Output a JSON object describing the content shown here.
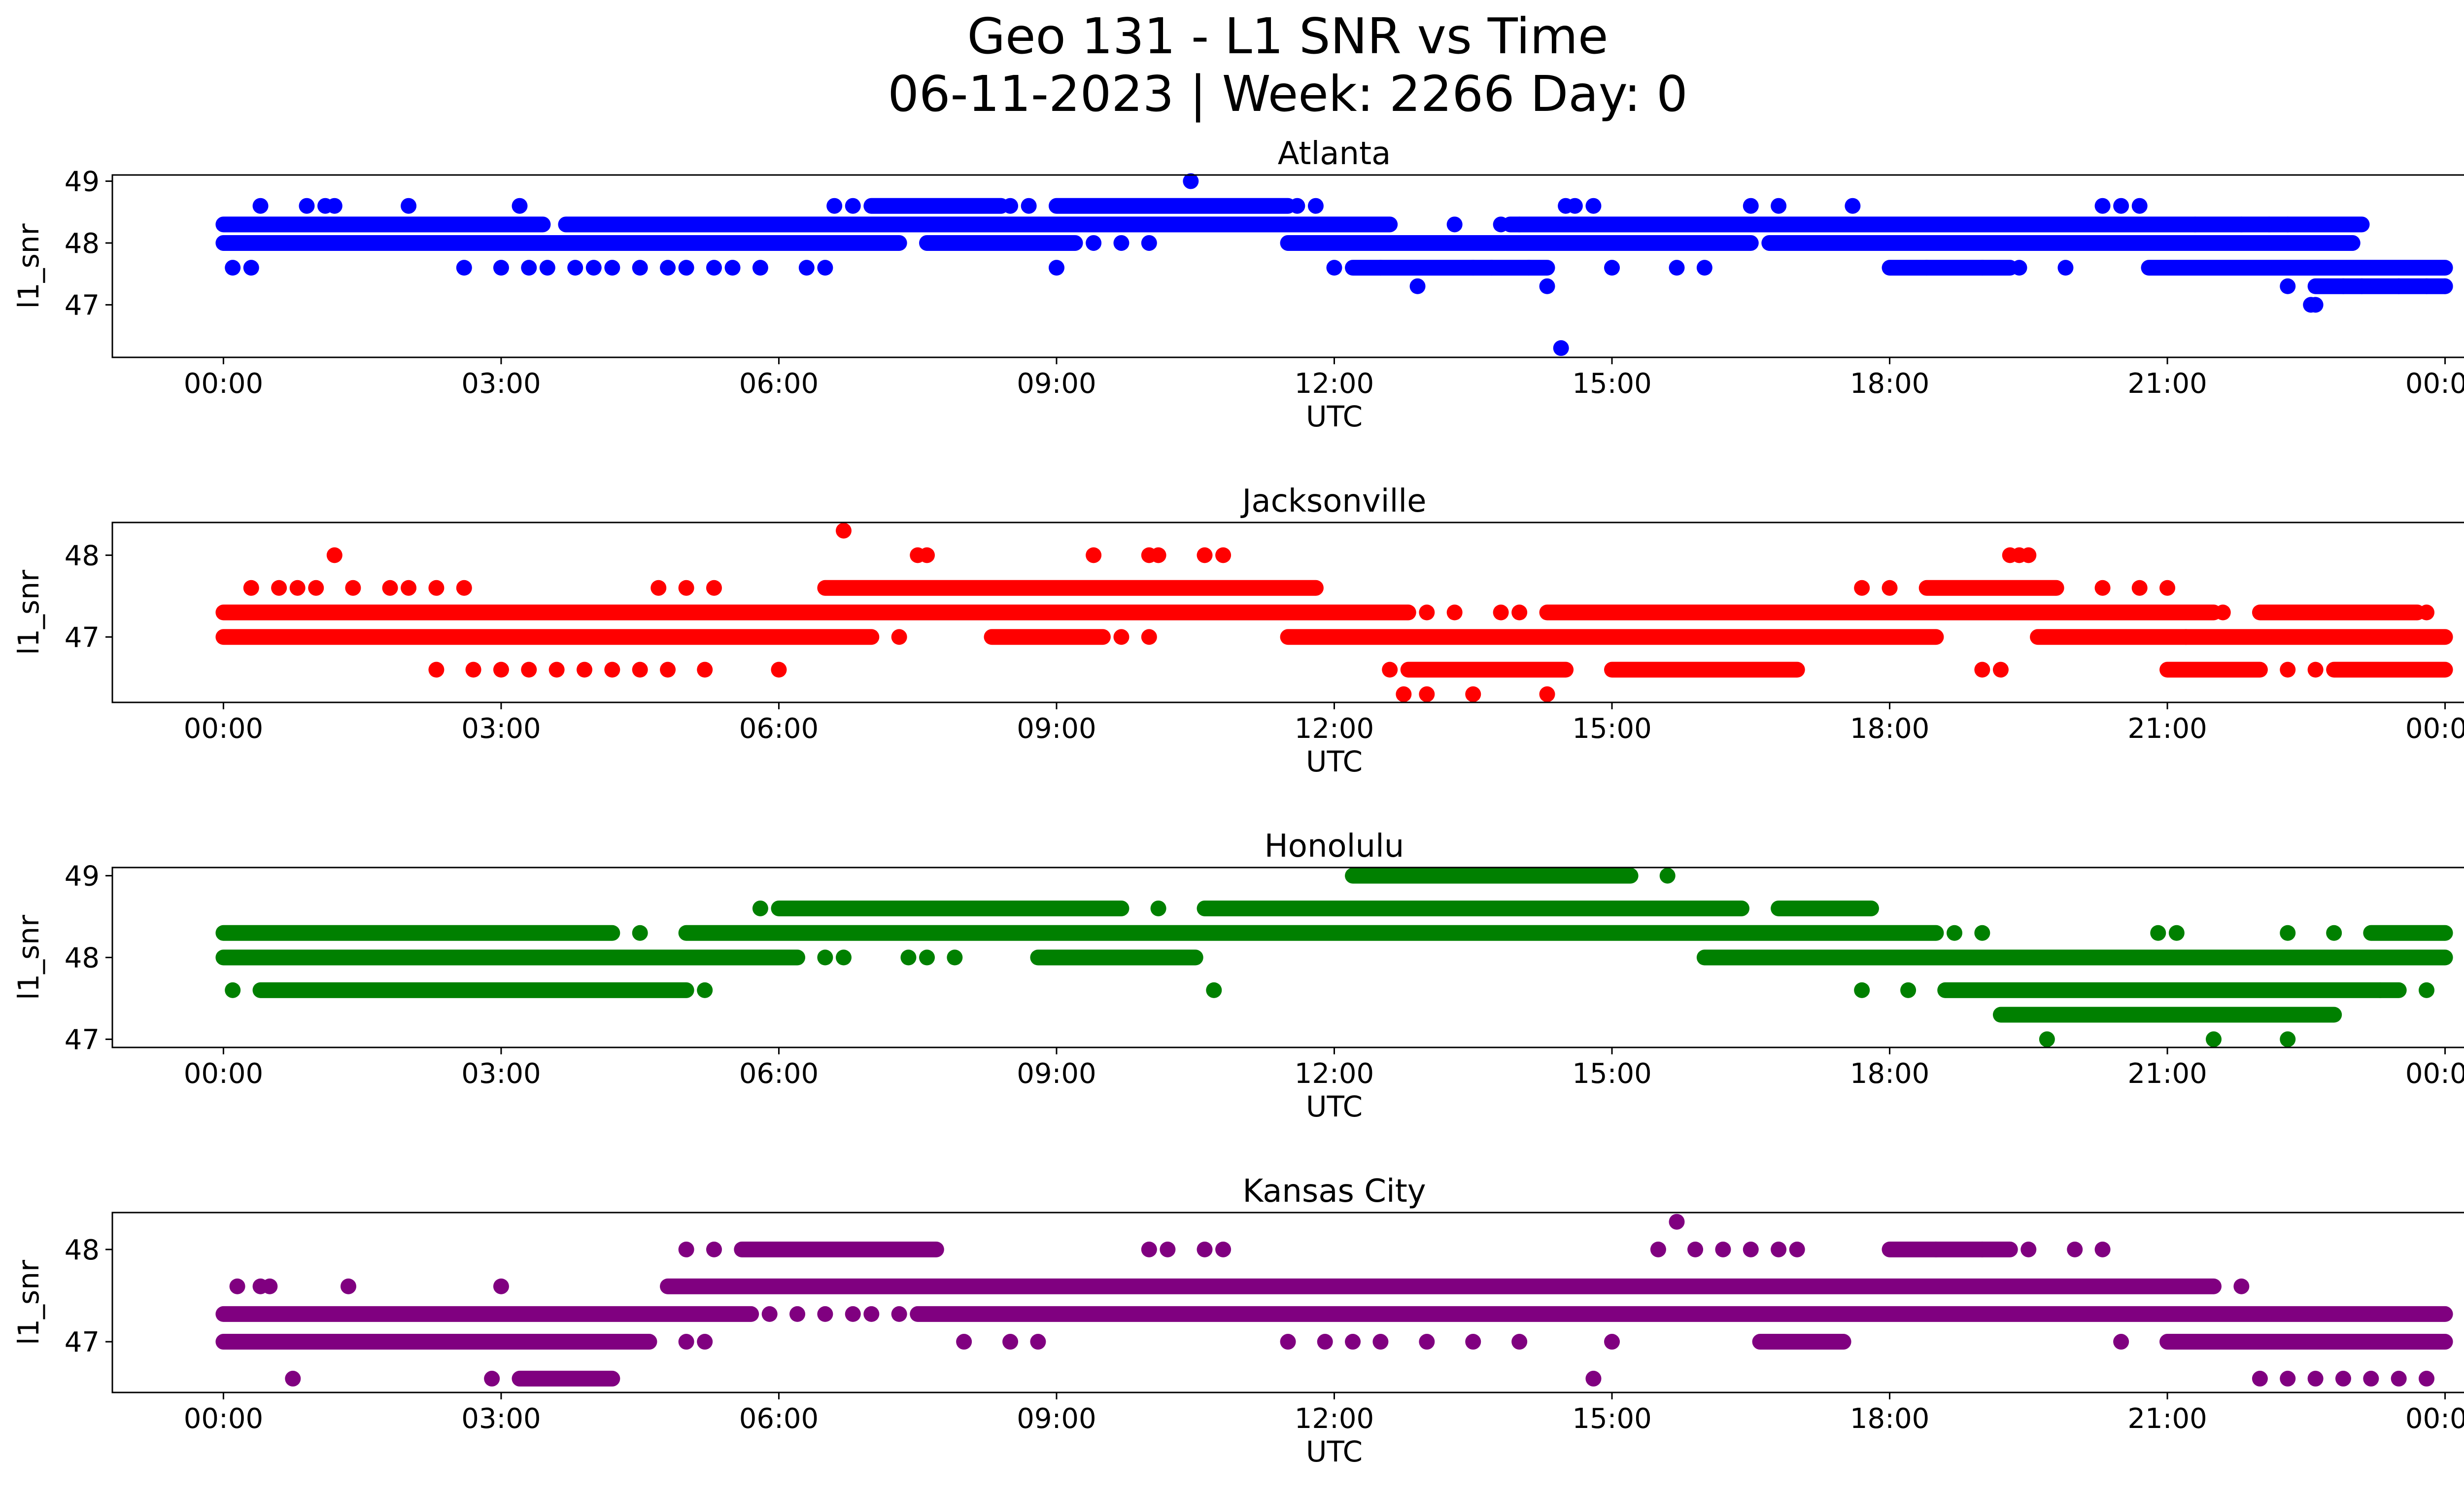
{
  "chart_data": {
    "type": "scatter",
    "title_line1": "Geo 131 - L1 SNR vs Time",
    "title_line2": "06-11-2023 | Week: 2266 Day: 0",
    "x_axis_unit": "hours UTC",
    "xlim": [
      -1.2,
      25.2
    ],
    "x_ticks": [
      0,
      3,
      6,
      9,
      12,
      15,
      18,
      21,
      24
    ],
    "x_tick_labels": [
      "00:00",
      "03:00",
      "06:00",
      "09:00",
      "12:00",
      "15:00",
      "18:00",
      "21:00",
      "00:00"
    ],
    "panels": [
      {
        "title": "Atlanta",
        "color": "#0000ff",
        "xlabel": "UTC",
        "ylabel": "l1_snr",
        "ylim": [
          46.15,
          49.1
        ],
        "y_ticks": [
          47,
          48,
          49
        ],
        "y_tick_labels": [
          "47",
          "48",
          "49"
        ],
        "bands": [
          {
            "y": 48.3,
            "from": 0,
            "to": 3.45
          },
          {
            "y": 48.3,
            "from": 3.7,
            "to": 12.6
          },
          {
            "y": 48.3,
            "from": 13.9,
            "to": 23.1
          },
          {
            "y": 48.0,
            "from": 0,
            "to": 7.3
          },
          {
            "y": 48.0,
            "from": 7.6,
            "to": 9.2
          },
          {
            "y": 48.0,
            "from": 11.5,
            "to": 16.5
          },
          {
            "y": 48.0,
            "from": 16.7,
            "to": 23.0
          },
          {
            "y": 47.6,
            "from": 12.2,
            "to": 14.3
          },
          {
            "y": 47.6,
            "from": 18.0,
            "to": 19.3
          },
          {
            "y": 47.6,
            "from": 20.8,
            "to": 24.0
          },
          {
            "y": 47.3,
            "from": 22.6,
            "to": 24.0
          },
          {
            "y": 48.6,
            "from": 7.0,
            "to": 8.4
          },
          {
            "y": 48.6,
            "from": 9.0,
            "to": 11.5
          }
        ],
        "points": [
          [
            0.1,
            47.6
          ],
          [
            0.3,
            47.6
          ],
          [
            0.4,
            48.6
          ],
          [
            0.9,
            48.6
          ],
          [
            1.1,
            48.6
          ],
          [
            1.2,
            48.6
          ],
          [
            2.0,
            48.6
          ],
          [
            2.6,
            47.6
          ],
          [
            3.0,
            47.6
          ],
          [
            3.2,
            48.6
          ],
          [
            3.3,
            47.6
          ],
          [
            3.5,
            47.6
          ],
          [
            3.8,
            47.6
          ],
          [
            4.0,
            47.6
          ],
          [
            4.2,
            47.6
          ],
          [
            4.5,
            47.6
          ],
          [
            4.8,
            47.6
          ],
          [
            5.0,
            47.6
          ],
          [
            5.3,
            47.6
          ],
          [
            5.5,
            47.6
          ],
          [
            5.8,
            47.6
          ],
          [
            6.3,
            47.6
          ],
          [
            6.5,
            47.6
          ],
          [
            6.6,
            48.6
          ],
          [
            6.8,
            48.6
          ],
          [
            8.5,
            48.6
          ],
          [
            8.7,
            48.6
          ],
          [
            9.0,
            47.6
          ],
          [
            9.4,
            48.0
          ],
          [
            9.7,
            48.0
          ],
          [
            10.0,
            48.0
          ],
          [
            10.45,
            49.0
          ],
          [
            11.6,
            48.6
          ],
          [
            11.8,
            48.6
          ],
          [
            12.0,
            47.6
          ],
          [
            12.5,
            47.6
          ],
          [
            12.9,
            47.3
          ],
          [
            13.3,
            48.3
          ],
          [
            13.5,
            47.6
          ],
          [
            13.7,
            47.6
          ],
          [
            13.8,
            48.3
          ],
          [
            14.0,
            48.3
          ],
          [
            14.1,
            47.6
          ],
          [
            14.3,
            47.3
          ],
          [
            14.45,
            46.3
          ],
          [
            14.5,
            48.6
          ],
          [
            14.6,
            48.6
          ],
          [
            14.8,
            48.6
          ],
          [
            15.0,
            47.6
          ],
          [
            15.7,
            47.6
          ],
          [
            16.0,
            47.6
          ],
          [
            16.5,
            48.6
          ],
          [
            16.8,
            48.6
          ],
          [
            17.6,
            48.6
          ],
          [
            18.4,
            47.6
          ],
          [
            19.0,
            47.6
          ],
          [
            19.4,
            47.6
          ],
          [
            19.9,
            47.6
          ],
          [
            20.3,
            48.6
          ],
          [
            20.5,
            48.6
          ],
          [
            20.7,
            48.6
          ],
          [
            21.3,
            48.3
          ],
          [
            21.8,
            48.3
          ],
          [
            22.1,
            48.3
          ],
          [
            22.3,
            48.3
          ],
          [
            22.6,
            48.0
          ],
          [
            22.8,
            48.0
          ],
          [
            22.55,
            47.0
          ],
          [
            22.6,
            47.0
          ],
          [
            22.3,
            47.3
          ],
          [
            22.9,
            47.3
          ],
          [
            23.1,
            47.3
          ],
          [
            23.5,
            47.3
          ],
          [
            23.8,
            47.3
          ],
          [
            24.0,
            47.3
          ]
        ]
      },
      {
        "title": "Jacksonville",
        "color": "#ff0000",
        "xlabel": "UTC",
        "ylabel": "l1_snr",
        "ylim": [
          46.2,
          48.4
        ],
        "y_ticks": [
          47,
          48
        ],
        "y_tick_labels": [
          "47",
          "48"
        ],
        "bands": [
          {
            "y": 47.3,
            "from": 0,
            "to": 12.8
          },
          {
            "y": 47.3,
            "from": 14.3,
            "to": 21.5
          },
          {
            "y": 47.3,
            "from": 22.0,
            "to": 23.7
          },
          {
            "y": 47.0,
            "from": 0,
            "to": 7.0
          },
          {
            "y": 47.0,
            "from": 8.3,
            "to": 9.5
          },
          {
            "y": 47.0,
            "from": 11.5,
            "to": 18.5
          },
          {
            "y": 47.0,
            "from": 19.6,
            "to": 24.0
          },
          {
            "y": 47.6,
            "from": 6.5,
            "to": 11.8
          },
          {
            "y": 47.6,
            "from": 18.4,
            "to": 19.8
          },
          {
            "y": 46.6,
            "from": 12.8,
            "to": 14.5
          },
          {
            "y": 46.6,
            "from": 15.0,
            "to": 17.0
          },
          {
            "y": 46.6,
            "from": 21.0,
            "to": 22.0
          },
          {
            "y": 46.6,
            "from": 22.8,
            "to": 24.0
          }
        ],
        "points": [
          [
            0.3,
            47.6
          ],
          [
            0.6,
            47.6
          ],
          [
            0.8,
            47.6
          ],
          [
            1.0,
            47.6
          ],
          [
            1.2,
            48.0
          ],
          [
            1.4,
            47.6
          ],
          [
            1.8,
            47.6
          ],
          [
            2.0,
            47.6
          ],
          [
            2.3,
            47.6
          ],
          [
            2.6,
            47.6
          ],
          [
            2.3,
            46.6
          ],
          [
            2.7,
            46.6
          ],
          [
            3.0,
            46.6
          ],
          [
            3.3,
            46.6
          ],
          [
            3.6,
            46.6
          ],
          [
            3.9,
            46.6
          ],
          [
            4.2,
            46.6
          ],
          [
            4.5,
            46.6
          ],
          [
            4.7,
            47.6
          ],
          [
            4.8,
            46.6
          ],
          [
            5.0,
            47.6
          ],
          [
            5.2,
            46.6
          ],
          [
            5.3,
            47.6
          ],
          [
            6.0,
            46.6
          ],
          [
            6.7,
            48.3
          ],
          [
            7.3,
            47.0
          ],
          [
            7.5,
            48.0
          ],
          [
            7.6,
            48.0
          ],
          [
            9.4,
            48.0
          ],
          [
            10.0,
            48.0
          ],
          [
            10.1,
            48.0
          ],
          [
            10.6,
            48.0
          ],
          [
            10.8,
            48.0
          ],
          [
            9.7,
            47.0
          ],
          [
            10.0,
            47.0
          ],
          [
            12.6,
            46.6
          ],
          [
            12.75,
            46.3
          ],
          [
            13.0,
            46.3
          ],
          [
            13.0,
            47.3
          ],
          [
            13.3,
            47.3
          ],
          [
            13.5,
            46.3
          ],
          [
            13.8,
            47.3
          ],
          [
            14.0,
            47.3
          ],
          [
            14.3,
            46.3
          ],
          [
            17.7,
            47.6
          ],
          [
            18.0,
            47.6
          ],
          [
            19.0,
            46.6
          ],
          [
            19.2,
            46.6
          ],
          [
            19.3,
            48.0
          ],
          [
            19.4,
            48.0
          ],
          [
            19.5,
            48.0
          ],
          [
            20.3,
            47.6
          ],
          [
            20.7,
            47.6
          ],
          [
            21.0,
            47.6
          ],
          [
            21.2,
            47.0
          ],
          [
            21.6,
            47.3
          ],
          [
            22.3,
            46.6
          ],
          [
            22.6,
            46.6
          ],
          [
            23.8,
            47.3
          ]
        ]
      },
      {
        "title": "Honolulu",
        "color": "#008000",
        "xlabel": "UTC",
        "ylabel": "l1_snr",
        "ylim": [
          46.9,
          49.1
        ],
        "y_ticks": [
          47,
          48,
          49
        ],
        "y_tick_labels": [
          "47",
          "48",
          "49"
        ],
        "bands": [
          {
            "y": 48.3,
            "from": 0,
            "to": 4.2
          },
          {
            "y": 48.3,
            "from": 5.0,
            "to": 18.5
          },
          {
            "y": 48.3,
            "from": 23.2,
            "to": 24.0
          },
          {
            "y": 48.0,
            "from": 0,
            "to": 6.2
          },
          {
            "y": 48.0,
            "from": 8.8,
            "to": 10.5
          },
          {
            "y": 48.0,
            "from": 16.0,
            "to": 24.0
          },
          {
            "y": 48.6,
            "from": 6.0,
            "to": 9.7
          },
          {
            "y": 48.6,
            "from": 10.6,
            "to": 16.4
          },
          {
            "y": 48.6,
            "from": 16.8,
            "to": 17.8
          },
          {
            "y": 49.0,
            "from": 12.2,
            "to": 15.2
          },
          {
            "y": 47.6,
            "from": 0.4,
            "to": 5.0
          },
          {
            "y": 47.6,
            "from": 18.6,
            "to": 23.5
          },
          {
            "y": 47.3,
            "from": 19.2,
            "to": 22.8
          }
        ],
        "points": [
          [
            0.1,
            47.6
          ],
          [
            4.5,
            48.3
          ],
          [
            5.2,
            47.6
          ],
          [
            5.8,
            48.6
          ],
          [
            6.5,
            48.0
          ],
          [
            6.7,
            48.0
          ],
          [
            7.4,
            48.0
          ],
          [
            7.6,
            48.0
          ],
          [
            7.9,
            48.0
          ],
          [
            9.6,
            48.6
          ],
          [
            10.1,
            48.6
          ],
          [
            10.7,
            47.6
          ],
          [
            15.6,
            49.0
          ],
          [
            17.7,
            47.6
          ],
          [
            18.2,
            47.6
          ],
          [
            18.7,
            48.3
          ],
          [
            19.0,
            48.3
          ],
          [
            19.7,
            47.0
          ],
          [
            20.9,
            48.3
          ],
          [
            21.1,
            48.3
          ],
          [
            21.5,
            47.0
          ],
          [
            22.3,
            47.0
          ],
          [
            22.3,
            48.3
          ],
          [
            22.8,
            48.3
          ],
          [
            23.3,
            47.6
          ],
          [
            23.8,
            47.6
          ]
        ]
      },
      {
        "title": "Kansas City",
        "color": "#800080",
        "xlabel": "UTC",
        "ylabel": "l1_snr",
        "ylim": [
          46.45,
          48.4
        ],
        "y_ticks": [
          47,
          48
        ],
        "y_tick_labels": [
          "47",
          "48"
        ],
        "bands": [
          {
            "y": 47.3,
            "from": 0,
            "to": 5.7
          },
          {
            "y": 47.3,
            "from": 7.5,
            "to": 24.0
          },
          {
            "y": 47.0,
            "from": 0,
            "to": 4.6
          },
          {
            "y": 47.0,
            "from": 21.0,
            "to": 24.0
          },
          {
            "y": 47.6,
            "from": 4.8,
            "to": 21.5
          },
          {
            "y": 48.0,
            "from": 5.6,
            "to": 7.7
          },
          {
            "y": 48.0,
            "from": 18.0,
            "to": 19.3
          },
          {
            "y": 47.0,
            "from": 16.6,
            "to": 17.5
          },
          {
            "y": 46.6,
            "from": 3.2,
            "to": 4.2
          }
        ],
        "points": [
          [
            0.15,
            47.6
          ],
          [
            0.4,
            47.6
          ],
          [
            0.5,
            47.6
          ],
          [
            0.75,
            46.6
          ],
          [
            1.35,
            47.6
          ],
          [
            2.9,
            46.6
          ],
          [
            3.0,
            47.6
          ],
          [
            5.0,
            48.0
          ],
          [
            5.3,
            48.0
          ],
          [
            5.0,
            47.0
          ],
          [
            5.2,
            47.0
          ],
          [
            5.9,
            47.3
          ],
          [
            6.2,
            47.3
          ],
          [
            6.5,
            47.3
          ],
          [
            6.8,
            47.3
          ],
          [
            7.0,
            47.3
          ],
          [
            7.3,
            47.3
          ],
          [
            8.0,
            47.0
          ],
          [
            8.5,
            47.0
          ],
          [
            8.8,
            47.0
          ],
          [
            10.0,
            48.0
          ],
          [
            10.2,
            48.0
          ],
          [
            10.6,
            48.0
          ],
          [
            10.8,
            48.0
          ],
          [
            11.5,
            47.0
          ],
          [
            11.9,
            47.0
          ],
          [
            12.2,
            47.0
          ],
          [
            12.5,
            47.0
          ],
          [
            13.0,
            47.0
          ],
          [
            13.5,
            47.0
          ],
          [
            14.0,
            47.0
          ],
          [
            14.8,
            46.6
          ],
          [
            15.0,
            47.0
          ],
          [
            15.5,
            48.0
          ],
          [
            15.7,
            48.3
          ],
          [
            15.9,
            48.0
          ],
          [
            16.2,
            48.0
          ],
          [
            16.5,
            48.0
          ],
          [
            16.8,
            48.0
          ],
          [
            17.0,
            48.0
          ],
          [
            18.5,
            48.0
          ],
          [
            19.0,
            48.0
          ],
          [
            19.5,
            48.0
          ],
          [
            20.0,
            48.0
          ],
          [
            20.3,
            48.0
          ],
          [
            21.8,
            47.6
          ],
          [
            22.0,
            46.6
          ],
          [
            22.3,
            46.6
          ],
          [
            22.6,
            46.6
          ],
          [
            22.9,
            46.6
          ],
          [
            23.2,
            46.6
          ],
          [
            23.5,
            46.6
          ],
          [
            23.8,
            46.6
          ],
          [
            20.5,
            47.0
          ]
        ]
      }
    ]
  }
}
